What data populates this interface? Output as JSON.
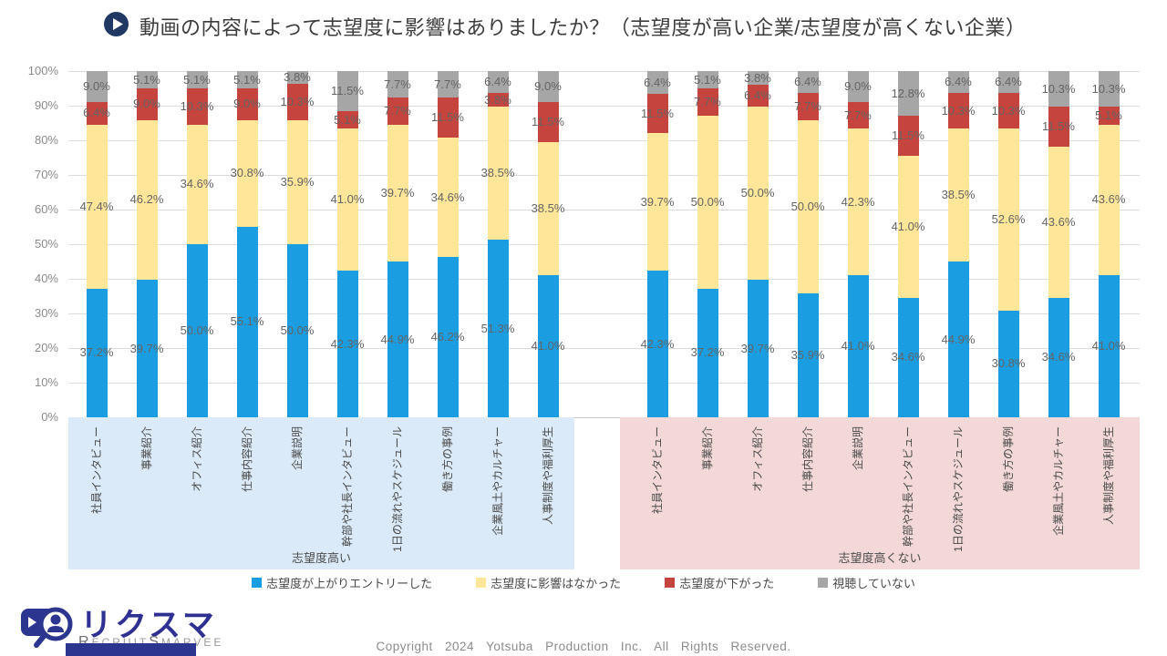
{
  "title": "動画の内容によって志望度に影響はありましたか？（志望度が高い企業/志望度が高くない企業）",
  "header_icon": "play-icon",
  "chart_data": {
    "type": "bar",
    "stacked": true,
    "value_unit": "%",
    "ylim": [
      0,
      100
    ],
    "grid": true,
    "legend_position": "bottom",
    "ytick_labels": [
      "0%",
      "10%",
      "20%",
      "30%",
      "40%",
      "50%",
      "60%",
      "70%",
      "80%",
      "90%",
      "100%"
    ],
    "categories": [
      "社員インタビュー",
      "事業紹介",
      "オフィス紹介",
      "仕事内容紹介",
      "企業説明",
      "幹部や社長インタビュー",
      "1日の流れやスケジュール",
      "働き方の事例",
      "企業風土やカルチャー",
      "人事制度や福利厚生"
    ],
    "groups": [
      {
        "label": "志望度高い",
        "band_color": "#daeaf8",
        "series": [
          {
            "name": "志望度が上がりエントリーした",
            "color": "#1b9de2",
            "values": [
              37.2,
              39.7,
              50.0,
              55.1,
              50.0,
              42.3,
              44.9,
              46.2,
              51.3,
              41.0
            ]
          },
          {
            "name": "志望度に影響はなかった",
            "color": "#ffe699",
            "values": [
              47.4,
              46.2,
              34.6,
              30.8,
              35.9,
              41.0,
              39.7,
              34.6,
              38.5,
              38.5
            ]
          },
          {
            "name": "志望度が下がった",
            "color": "#c5443e",
            "values": [
              6.4,
              9.0,
              10.3,
              9.0,
              10.3,
              5.1,
              7.7,
              11.5,
              3.8,
              11.5
            ]
          },
          {
            "name": "視聴していない",
            "color": "#a6a6a6",
            "values": [
              9.0,
              5.1,
              5.1,
              5.1,
              3.8,
              11.5,
              7.7,
              7.7,
              6.4,
              9.0
            ]
          }
        ]
      },
      {
        "label": "志望度高くない",
        "band_color": "#f3d8d8",
        "series": [
          {
            "name": "志望度が上がりエントリーした",
            "color": "#1b9de2",
            "values": [
              42.3,
              37.2,
              39.7,
              35.9,
              41.0,
              34.6,
              44.9,
              30.8,
              34.6,
              41.0
            ]
          },
          {
            "name": "志望度に影響はなかった",
            "color": "#ffe699",
            "values": [
              39.7,
              50.0,
              50.0,
              50.0,
              42.3,
              41.0,
              38.5,
              52.6,
              43.6,
              43.6
            ]
          },
          {
            "name": "志望度が下がった",
            "color": "#c5443e",
            "values": [
              11.5,
              7.7,
              6.4,
              7.7,
              7.7,
              11.5,
              10.3,
              10.3,
              11.5,
              5.1
            ]
          },
          {
            "name": "視聴していない",
            "color": "#a6a6a6",
            "values": [
              6.4,
              5.1,
              3.8,
              6.4,
              9.0,
              12.8,
              6.4,
              6.4,
              10.3,
              10.3
            ]
          }
        ]
      }
    ],
    "legend": [
      {
        "label": "志望度が上がりエントリーした",
        "color": "#1b9de2"
      },
      {
        "label": "志望度に影響はなかった",
        "color": "#ffe699"
      },
      {
        "label": "志望度が下がった",
        "color": "#c5443e"
      },
      {
        "label": "視聴していない",
        "color": "#a6a6a6"
      }
    ]
  },
  "footer": {
    "logo": {
      "icon": "video-camera-magnifier-person-icon",
      "name_jp": "リクスマ",
      "en_r": "R",
      "en_ecruit": "ECRUIT",
      "en_s": "S",
      "en_marvee": "MARVEE"
    },
    "copyright": "Copyright 2024 Yotsuba Production Inc. All Rights Reserved."
  },
  "colors": {
    "accent_navy": "#1f3864",
    "logo_blue": "#2e3192",
    "grid": "#dcdcdc"
  }
}
